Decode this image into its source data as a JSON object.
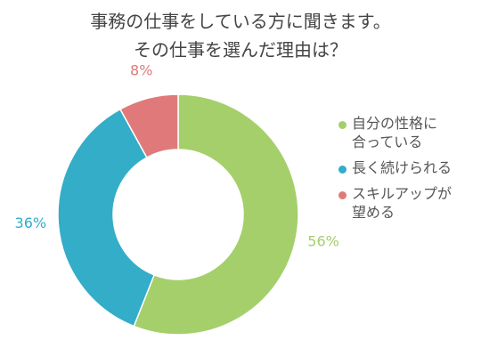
{
  "chart_data": {
    "type": "donut",
    "title": "事務の仕事をしている方に聞きます。\nその仕事を選んだ理由は？",
    "categories": [
      "自分の性格に\n合っている",
      "長く続けられる",
      "スキルアップが\n望める"
    ],
    "values": [
      56,
      36,
      8
    ],
    "value_labels": [
      "56%",
      "36%",
      "8%"
    ],
    "colors": [
      "#a5cf6b",
      "#33adc8",
      "#e07a7a"
    ],
    "legend": "right"
  }
}
